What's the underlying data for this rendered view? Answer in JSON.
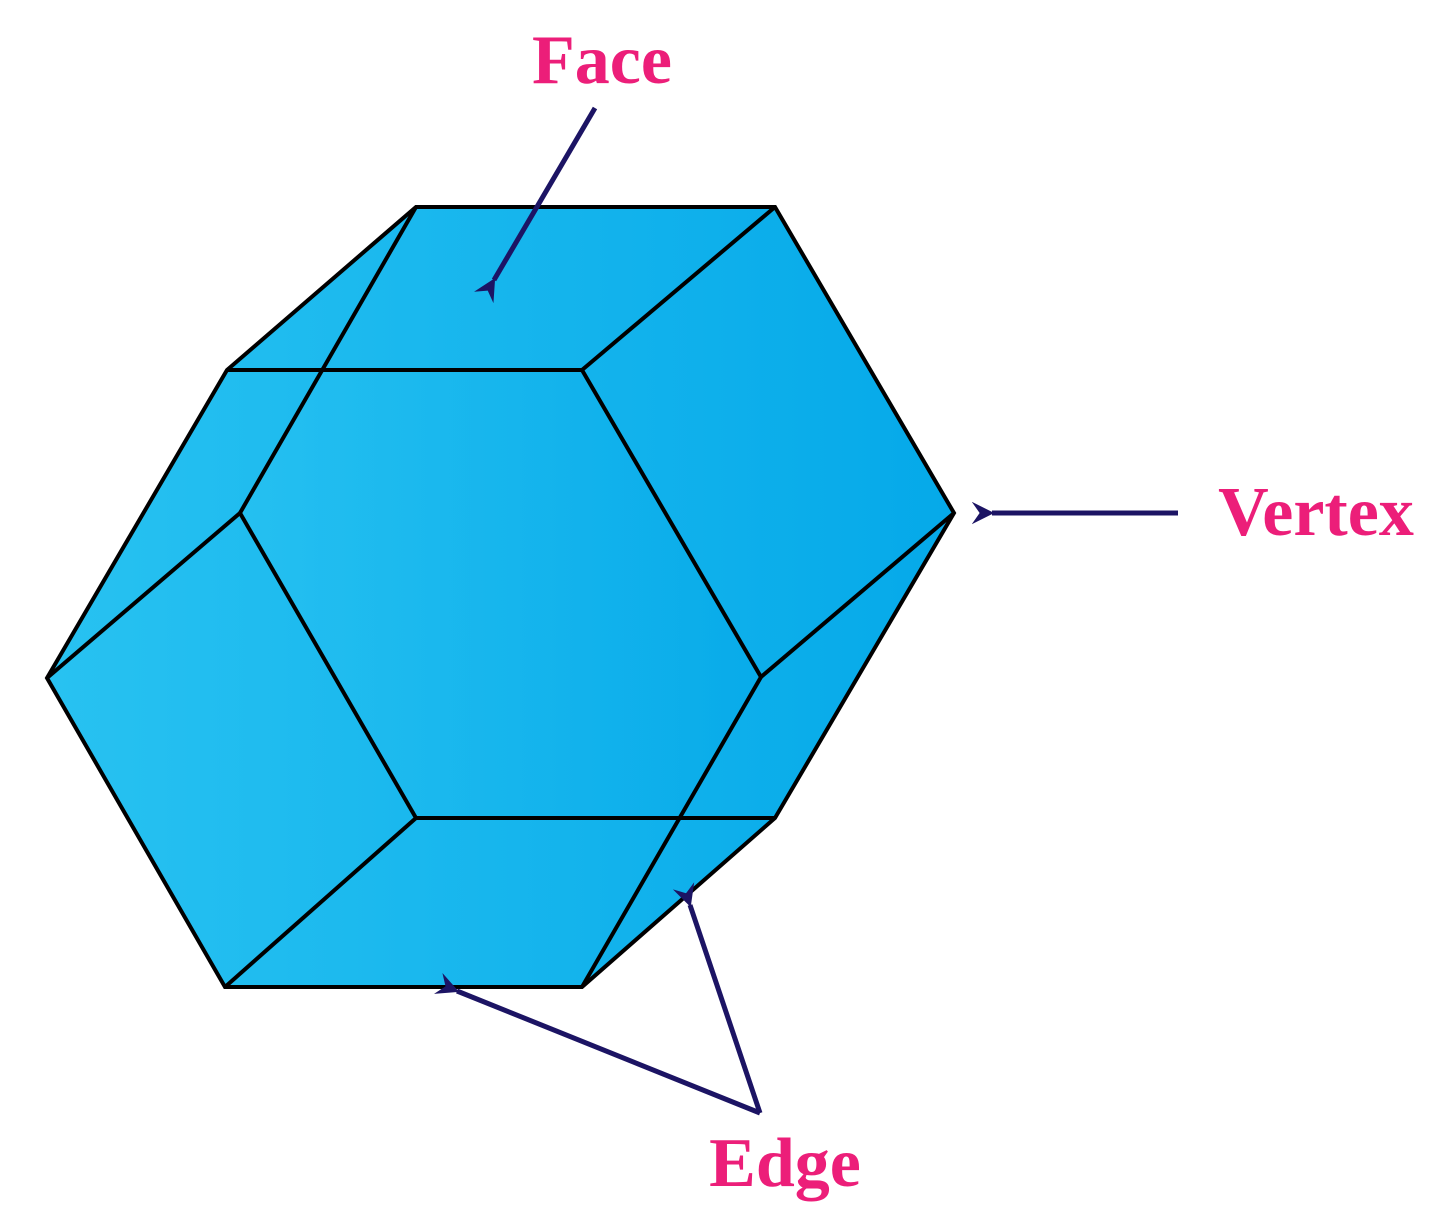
{
  "labels": {
    "face": "Face",
    "vertex": "Vertex",
    "edge": "Edge"
  },
  "colors": {
    "label": "#ec1e79",
    "arrow": "#1c1464",
    "fill_light": "#28c2f1",
    "fill_dark": "#05a9e9",
    "edge_line": "#000000"
  }
}
